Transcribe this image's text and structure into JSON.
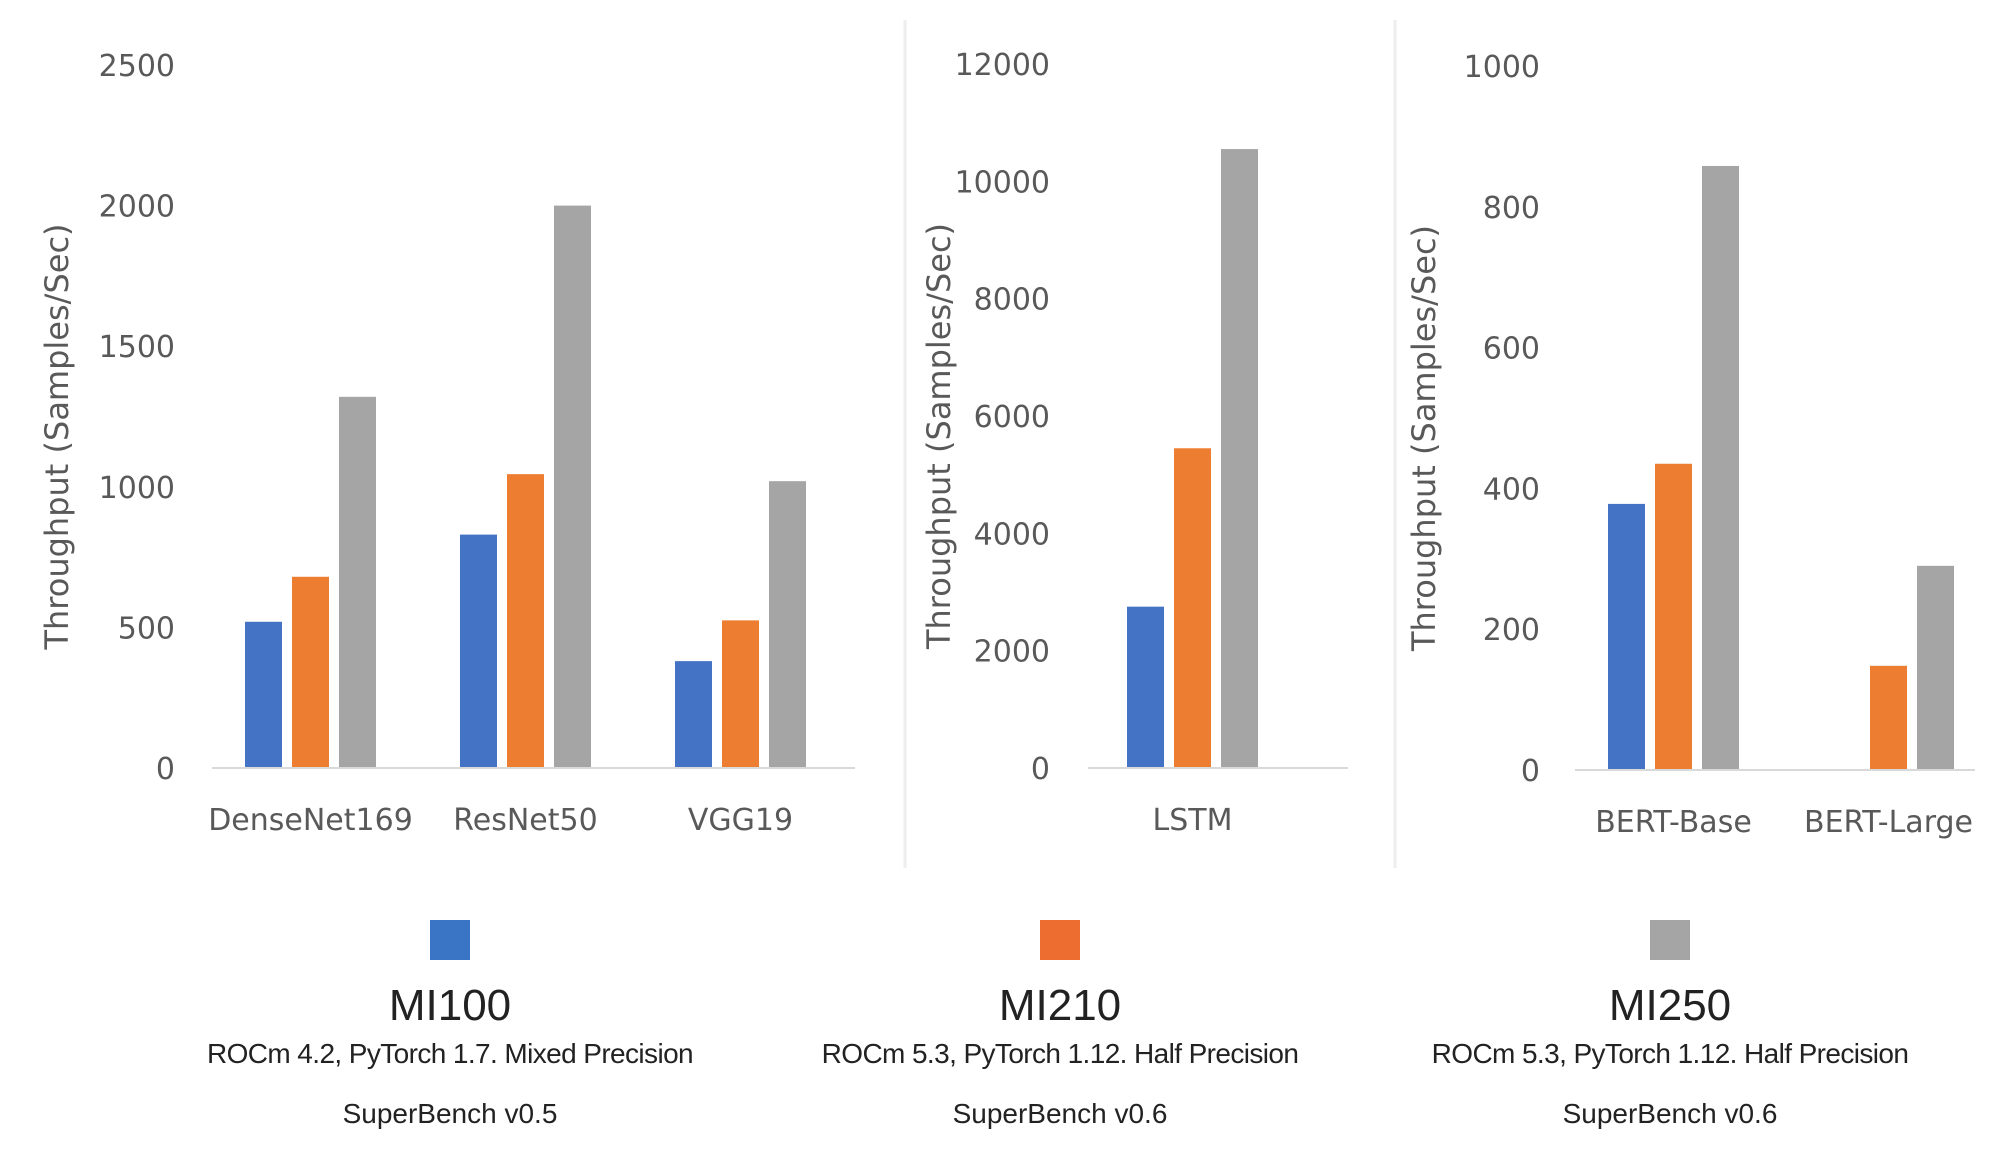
{
  "chart_data": [
    {
      "type": "bar",
      "categories": [
        "DenseNet169",
        "ResNet50",
        "VGG19"
      ],
      "series": [
        {
          "name": "MI100",
          "values": [
            520,
            830,
            380
          ]
        },
        {
          "name": "MI210",
          "values": [
            680,
            1045,
            525
          ]
        },
        {
          "name": "MI250",
          "values": [
            1320,
            2000,
            1020
          ]
        }
      ],
      "ylabel": "Throughput (Samples/Sec)",
      "ylim": [
        0,
        2500
      ],
      "yticks": [
        0,
        500,
        1000,
        1500,
        2000,
        2500
      ],
      "grid": false
    },
    {
      "type": "bar",
      "categories": [
        "LSTM"
      ],
      "series": [
        {
          "name": "MI100",
          "values": [
            2750
          ]
        },
        {
          "name": "MI210",
          "values": [
            5450
          ]
        },
        {
          "name": "MI250",
          "values": [
            10550
          ]
        }
      ],
      "ylabel": "Throughput (Samples/Sec)",
      "ylim": [
        0,
        12000
      ],
      "yticks": [
        0,
        2000,
        4000,
        6000,
        8000,
        10000,
        12000
      ],
      "grid": false
    },
    {
      "type": "bar",
      "categories": [
        "BERT-Base",
        "BERT-Large"
      ],
      "series": [
        {
          "name": "MI100",
          "values": [
            378,
            null
          ]
        },
        {
          "name": "MI210",
          "values": [
            435,
            148
          ]
        },
        {
          "name": "MI250",
          "values": [
            858,
            290
          ]
        }
      ],
      "ylabel": "Throughput (Samples/Sec)",
      "ylim": [
        0,
        1000
      ],
      "yticks": [
        0,
        200,
        400,
        600,
        800,
        1000
      ],
      "grid": false
    }
  ],
  "colors": {
    "MI100": "#4472c4",
    "MI210": "#ed7d31",
    "MI250": "#a5a5a5",
    "axis": "#d9d9d9",
    "divider": "#eeeeee"
  },
  "legend": [
    {
      "name": "MI100",
      "config": "ROCm 4.2, PyTorch 1.7. Mixed Precision",
      "version": "SuperBench v0.5"
    },
    {
      "name": "MI210",
      "config": "ROCm 5.3, PyTorch 1.12. Half Precision",
      "version": "SuperBench v0.6"
    },
    {
      "name": "MI250",
      "config": "ROCm 5.3, PyTorch 1.12. Half Precision",
      "version": "SuperBench v0.6"
    }
  ]
}
